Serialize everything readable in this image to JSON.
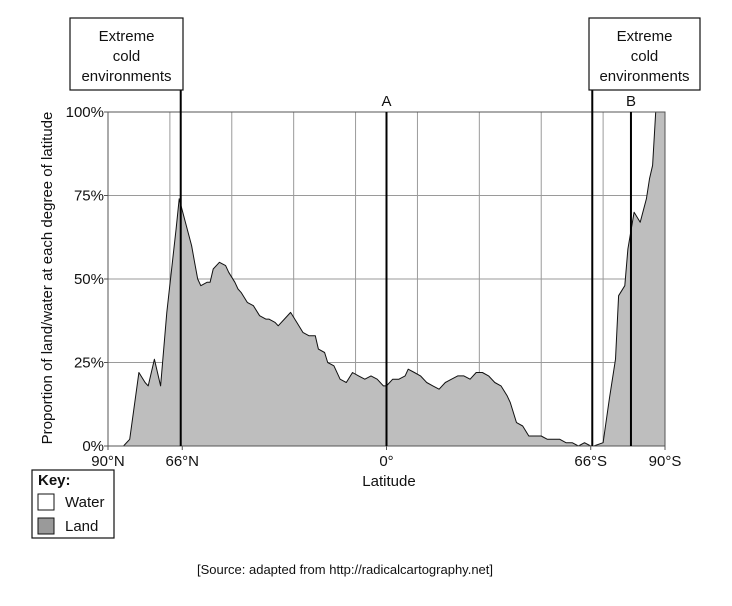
{
  "chart_data": {
    "type": "area",
    "title": "",
    "xlabel": "Latitude",
    "ylabel": "Proportion of land/water at each degree of latitude",
    "ylim": [
      0,
      100
    ],
    "xlim": [
      90,
      -90
    ],
    "y_ticks": [
      {
        "value": 0,
        "label": "0%"
      },
      {
        "value": 25,
        "label": "25%"
      },
      {
        "value": 50,
        "label": "50%"
      },
      {
        "value": 75,
        "label": "75%"
      },
      {
        "value": 100,
        "label": "100%"
      }
    ],
    "x_ticks": [
      {
        "value": 90,
        "label": "90°N"
      },
      {
        "value": 66,
        "label": "66°N"
      },
      {
        "value": 0,
        "label": "0°"
      },
      {
        "value": -66,
        "label": "66°S"
      },
      {
        "value": -90,
        "label": "90°S"
      }
    ],
    "grid_lines_x": [
      90,
      70,
      50,
      30,
      10,
      -10,
      -30,
      -50,
      -70,
      -90
    ],
    "grid_lines_y": [
      0,
      25,
      50,
      75,
      100
    ],
    "grid": true,
    "series": [
      {
        "name": "Land",
        "color": "#bebebe",
        "x": [
          90,
          85,
          83,
          80,
          78,
          77,
          75,
          73,
          71,
          68,
          67,
          65,
          63,
          62,
          61,
          60,
          58,
          57,
          56,
          54,
          52,
          51,
          49,
          48,
          47,
          45,
          43,
          41,
          39,
          38,
          36,
          35,
          33,
          31,
          29,
          27,
          25,
          23,
          22,
          20,
          19,
          17,
          15,
          13,
          11,
          9,
          7,
          5,
          3,
          1,
          0,
          -2,
          -4,
          -6,
          -7,
          -9,
          -11,
          -13,
          -15,
          -17,
          -19,
          -21,
          -23,
          -25,
          -27,
          -29,
          -31,
          -33,
          -35,
          -37,
          -39,
          -40,
          -42,
          -44,
          -46,
          -48,
          -50,
          -52,
          -54,
          -56,
          -58,
          -60,
          -62,
          -64,
          -66,
          -67,
          -70,
          -72,
          -74,
          -75,
          -77,
          -78,
          -80,
          -82,
          -84,
          -85,
          -86,
          -87,
          -90
        ],
        "y": [
          0,
          0,
          2,
          22,
          19,
          18,
          26,
          18,
          40,
          65,
          74,
          67,
          60,
          55,
          50,
          48,
          49,
          49,
          53,
          55,
          54,
          52,
          49,
          47,
          46,
          43,
          42,
          39,
          38,
          38,
          37,
          36,
          38,
          40,
          37,
          34,
          33,
          33,
          29,
          28,
          25,
          24,
          20,
          19,
          22,
          21,
          20,
          21,
          20,
          18,
          18,
          20,
          20,
          21,
          23,
          22,
          21,
          19,
          18,
          17,
          19,
          20,
          21,
          21,
          20,
          22,
          22,
          21,
          19,
          18,
          15,
          13,
          7,
          6,
          3,
          3,
          3,
          2,
          2,
          2,
          1,
          1,
          0,
          1,
          0,
          0,
          1,
          14,
          26,
          45,
          48,
          59,
          70,
          67,
          74,
          80,
          84,
          100,
          100
        ]
      }
    ],
    "annotations": [
      {
        "type": "vline",
        "x": 66.5,
        "label": ""
      },
      {
        "type": "vline",
        "x": 0,
        "label": "A"
      },
      {
        "type": "vline",
        "x": -66.5,
        "label": ""
      },
      {
        "type": "vline",
        "x": -79,
        "label": "B"
      }
    ],
    "boxes": [
      {
        "text": "Extreme cold environments",
        "lines": [
          "Extreme",
          "cold",
          "environments"
        ],
        "side": "left"
      },
      {
        "text": "Extreme cold environments",
        "lines": [
          "Extreme",
          "cold",
          "environments"
        ],
        "side": "right"
      }
    ],
    "legend": {
      "title": "Key:",
      "position": "bottom-left",
      "items": [
        {
          "label": "Water",
          "color": "#ffffff"
        },
        {
          "label": "Land",
          "color": "#9a9a9a"
        }
      ]
    },
    "source": "[Source: adapted from http://radicalcartography.net]"
  }
}
